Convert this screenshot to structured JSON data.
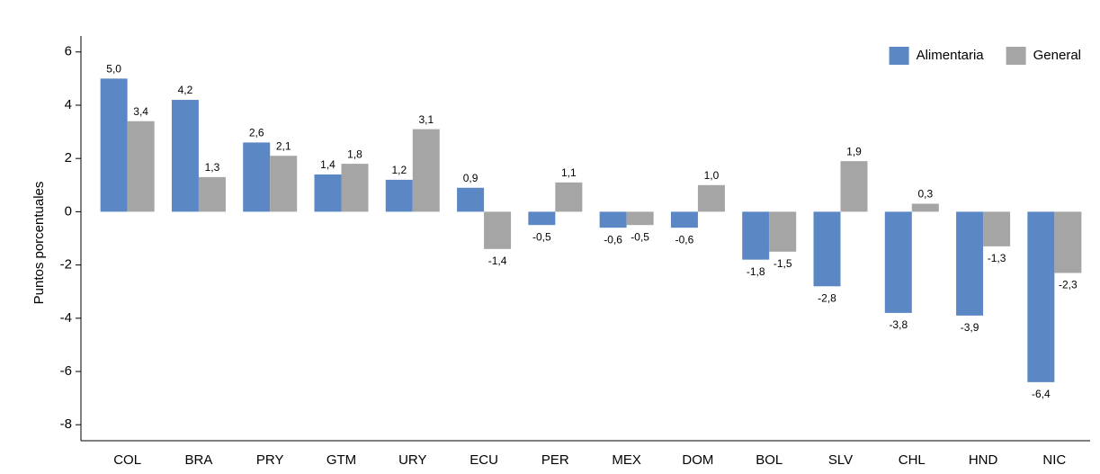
{
  "chart_data": {
    "type": "bar",
    "y_label": "Puntos porcentuales",
    "categories": [
      "COL",
      "BRA",
      "PRY",
      "GTM",
      "URY",
      "ECU",
      "PER",
      "MEX",
      "DOM",
      "BOL",
      "SLV",
      "CHL",
      "HND",
      "NIC"
    ],
    "series": [
      {
        "name": "Alimentaria",
        "color": "#5b87c5",
        "values": [
          5.0,
          4.2,
          2.6,
          1.4,
          1.2,
          0.9,
          -0.5,
          -0.6,
          -0.6,
          -1.8,
          -2.8,
          -3.8,
          -3.9,
          -6.4
        ],
        "value_labels": [
          "5,0",
          "4,2",
          "2,6",
          "1,4",
          "1,2",
          "0,9",
          "-0,5",
          "-0,6",
          "-0,6",
          "-1,8",
          "-2,8",
          "-3,8",
          "-3,9",
          "-6,4"
        ]
      },
      {
        "name": "General",
        "color": "#a5a5a5",
        "values": [
          3.4,
          1.3,
          2.1,
          1.8,
          3.1,
          -1.4,
          1.1,
          -0.5,
          1.0,
          -1.5,
          1.9,
          0.3,
          -1.3,
          -2.3
        ],
        "value_labels": [
          "3,4",
          "1,3",
          "2,1",
          "1,8",
          "3,1",
          "-1,4",
          "1,1",
          "-0,5",
          "1,0",
          "-1,5",
          "1,9",
          "0,3",
          "-1,3",
          "-2,3"
        ]
      }
    ],
    "ylim": [
      -8.6,
      6.6
    ],
    "yticks": [
      -8,
      -6,
      -4,
      -2,
      0,
      2,
      4,
      6
    ],
    "legend": "top-right",
    "grid": false
  }
}
